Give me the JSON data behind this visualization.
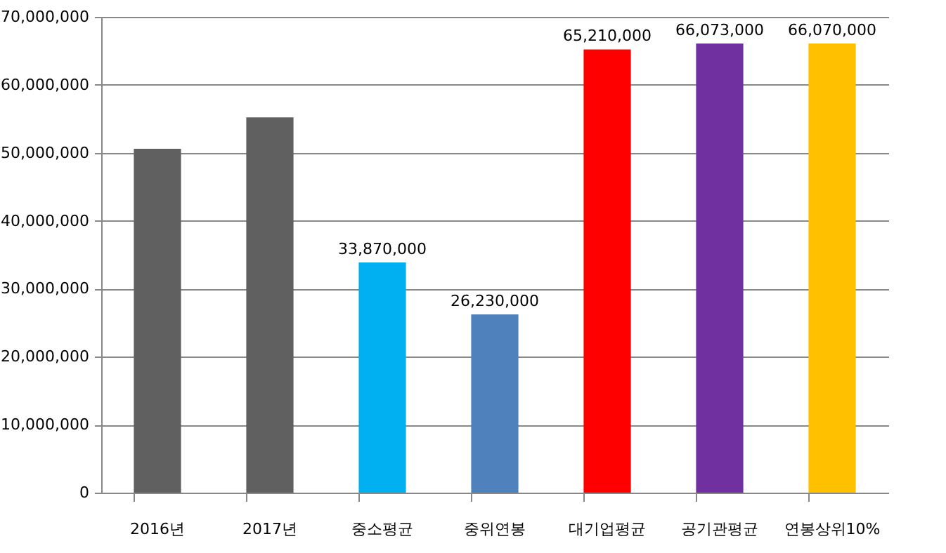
{
  "chart_data": {
    "type": "bar",
    "categories": [
      "2016년",
      "2017년",
      "중소평균",
      "중위연봉",
      "대기업평균",
      "공기관평균",
      "연봉상위10%"
    ],
    "values": [
      50600000,
      55200000,
      33870000,
      26230000,
      65210000,
      66073000,
      66070000
    ],
    "colors": [
      "#606060",
      "#606060",
      "#00b0f0",
      "#4f81bd",
      "#ff0000",
      "#7030a0",
      "#ffc000"
    ],
    "value_labels": [
      null,
      null,
      "33,870,000",
      "26,230,000",
      "65,210,000",
      "66,073,000",
      "66,070,000"
    ],
    "ylim": [
      0,
      70000000
    ],
    "yticks": [
      {
        "value": 0,
        "label": "0"
      },
      {
        "value": 10000000,
        "label": "10,000,000"
      },
      {
        "value": 20000000,
        "label": "20,000,000"
      },
      {
        "value": 30000000,
        "label": "30,000,000"
      },
      {
        "value": 40000000,
        "label": "40,000,000"
      },
      {
        "value": 50000000,
        "label": "50,000,000"
      },
      {
        "value": 60000000,
        "label": "60,000,000"
      },
      {
        "value": 70000000,
        "label": "70,000,000"
      }
    ],
    "grid": "y"
  }
}
